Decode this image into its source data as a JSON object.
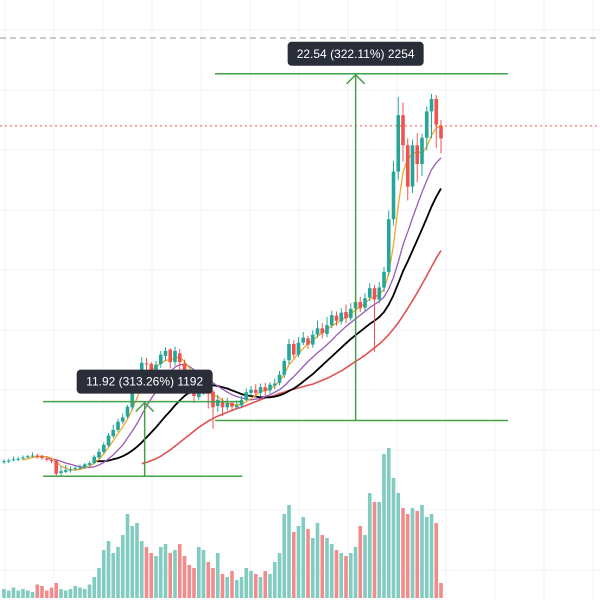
{
  "colors": {
    "up": "#26a69a",
    "down": "#ef5350",
    "vol_up": "#81cbc1",
    "vol_down": "#f28c8c",
    "measure": "#43a047",
    "ma_fast": "#f5a623",
    "ma_mid": "#9b59b6",
    "ma_black": "#000000",
    "ma_red": "#e05252",
    "tooltip_bg": "#2a2e39",
    "price_line": "#ef5350",
    "top_line": "#9598a1"
  },
  "chart_data": {
    "type": "candlestick",
    "grid": true,
    "candles": [
      [
        6,
        6,
        5.6,
        6.3
      ],
      [
        6.1,
        6.1,
        5.7,
        6.4
      ],
      [
        6.2,
        6.3,
        6.0,
        6.7
      ],
      [
        6.4,
        6.4,
        6.0,
        6.7
      ],
      [
        6.5,
        6.6,
        6.2,
        6.9
      ],
      [
        6.6,
        6.8,
        6.5,
        7.0
      ],
      [
        6.8,
        6.9,
        6.6,
        7.4
      ],
      [
        6.9,
        6.7,
        6.4,
        7.2
      ],
      [
        6.8,
        6.5,
        6.2,
        7.0
      ],
      [
        6.4,
        6.3,
        6.0,
        6.8
      ],
      [
        6.2,
        6.0,
        5.7,
        6.4
      ],
      [
        6.1,
        4.0,
        3.6,
        6.1
      ],
      [
        4.1,
        4.4,
        3.7,
        5.2
      ],
      [
        4.3,
        4.6,
        4.1,
        5.4
      ],
      [
        4.5,
        4.7,
        4.2,
        5.2
      ],
      [
        4.7,
        4.9,
        4.5,
        5.3
      ],
      [
        4.9,
        5.0,
        4.6,
        5.5
      ],
      [
        5.0,
        5.5,
        4.8,
        5.7
      ],
      [
        5.4,
        5.7,
        5.2,
        6.0
      ],
      [
        5.7,
        6.7,
        5.5,
        7.0
      ],
      [
        6.6,
        7.5,
        6.4,
        8.0
      ],
      [
        7.5,
        8.6,
        7.2,
        9.0
      ],
      [
        8.5,
        10.1,
        8.3,
        10.5
      ],
      [
        10.0,
        11.0,
        9.7,
        11.8
      ],
      [
        11.0,
        12.3,
        10.7,
        12.8
      ],
      [
        12.3,
        13.0,
        11.9,
        13.6
      ],
      [
        13.1,
        14.7,
        12.8,
        15.0
      ],
      [
        14.6,
        17.8,
        14.2,
        18.5
      ],
      [
        17.6,
        19.9,
        17.1,
        20.4
      ],
      [
        19.8,
        21.7,
        19.2,
        22.6
      ],
      [
        21.6,
        21.5,
        20.6,
        22.5
      ],
      [
        21.5,
        20.5,
        19.4,
        21.8
      ],
      [
        20.6,
        21.4,
        19.3,
        22.0
      ],
      [
        21.5,
        23.0,
        20.9,
        23.6
      ],
      [
        22.8,
        23.6,
        22.0,
        24.2
      ],
      [
        23.8,
        21.8,
        20.8,
        24.0
      ],
      [
        21.8,
        23.6,
        21.2,
        24.3
      ],
      [
        23.2,
        21.8,
        19.6,
        23.9
      ],
      [
        21.6,
        19.8,
        18.5,
        22.2
      ],
      [
        19.6,
        18.5,
        16.6,
        20.2
      ],
      [
        18.2,
        16.4,
        15.3,
        18.8
      ],
      [
        16.2,
        17.0,
        15.8,
        18.2
      ],
      [
        17.2,
        18.9,
        16.6,
        19.6
      ],
      [
        18.7,
        17.3,
        14.4,
        19.3
      ],
      [
        17.1,
        14.6,
        11.2,
        17.3
      ],
      [
        14.8,
        15.8,
        13.9,
        16.6
      ],
      [
        15.5,
        14.6,
        13.2,
        16.1
      ],
      [
        14.6,
        15.3,
        14.1,
        16.1
      ],
      [
        15.3,
        14.7,
        14.0,
        15.6
      ],
      [
        14.6,
        14.9,
        14.2,
        15.7
      ],
      [
        14.9,
        15.8,
        14.6,
        16.4
      ],
      [
        15.8,
        17.0,
        15.6,
        17.6
      ],
      [
        16.9,
        17.4,
        16.4,
        18.0
      ],
      [
        17.4,
        16.9,
        16.2,
        18.3
      ],
      [
        16.9,
        17.8,
        16.3,
        18.4
      ],
      [
        17.8,
        17.2,
        16.4,
        18.5
      ],
      [
        17.3,
        18.2,
        16.8,
        18.6
      ],
      [
        18.1,
        18.4,
        17.5,
        19.2
      ],
      [
        18.5,
        19.8,
        18.1,
        20.4
      ],
      [
        19.8,
        22.0,
        19.3,
        22.4
      ],
      [
        22.1,
        24.7,
        21.5,
        25.5
      ],
      [
        24.7,
        23.0,
        22.4,
        25.3
      ],
      [
        23.0,
        24.9,
        22.6,
        25.8
      ],
      [
        24.9,
        25.7,
        24.5,
        26.6
      ],
      [
        25.6,
        24.6,
        23.9,
        26.0
      ],
      [
        24.6,
        26.2,
        24.1,
        26.9
      ],
      [
        26.2,
        27.2,
        25.7,
        28.4
      ],
      [
        27.2,
        26.4,
        25.6,
        28.0
      ],
      [
        26.3,
        27.7,
        25.8,
        29.0
      ],
      [
        27.7,
        29.3,
        27.2,
        30.0
      ],
      [
        29.2,
        28.4,
        27.6,
        29.9
      ],
      [
        28.3,
        29.7,
        27.8,
        30.4
      ],
      [
        29.8,
        28.8,
        28.0,
        31.0
      ],
      [
        28.8,
        30.3,
        28.4,
        31.2
      ],
      [
        30.4,
        31.4,
        29.9,
        32.0
      ],
      [
        31.4,
        30.4,
        29.8,
        32.2
      ],
      [
        30.5,
        32.0,
        29.9,
        32.8
      ],
      [
        32.1,
        33.6,
        31.5,
        34.4
      ],
      [
        33.6,
        31.8,
        23.5,
        34.1
      ],
      [
        31.8,
        33.7,
        31.2,
        34.6
      ],
      [
        33.7,
        36.2,
        33.0,
        37.0
      ],
      [
        36.2,
        44.6,
        35.6,
        46.0
      ],
      [
        44.6,
        52.2,
        43.6,
        53.9
      ],
      [
        52.2,
        61.2,
        50.9,
        64.1
      ],
      [
        61.2,
        56.4,
        53.8,
        63.2
      ],
      [
        56.4,
        49.8,
        47.6,
        57.5
      ],
      [
        49.8,
        56.4,
        48.8,
        57.3
      ],
      [
        56.4,
        53.4,
        50.5,
        58.3
      ],
      [
        53.4,
        57.6,
        51.5,
        58.2
      ],
      [
        57.6,
        61.8,
        55.6,
        62.6
      ],
      [
        61.8,
        63.8,
        57.5,
        64.6
      ],
      [
        63.8,
        59.7,
        56.0,
        64.4
      ],
      [
        59.5,
        57.5,
        55.1,
        60.4
      ]
    ],
    "volumes": [
      0.06,
      0.05,
      0.07,
      0.05,
      0.06,
      0.05,
      0.04,
      0.09,
      0.08,
      0.05,
      0.07,
      0.1,
      0.06,
      0.05,
      0.06,
      0.08,
      0.07,
      0.06,
      0.09,
      0.14,
      0.2,
      0.32,
      0.38,
      0.3,
      0.34,
      0.42,
      0.56,
      0.48,
      0.5,
      0.38,
      0.34,
      0.3,
      0.28,
      0.34,
      0.36,
      0.3,
      0.32,
      0.36,
      0.28,
      0.22,
      0.2,
      0.34,
      0.32,
      0.24,
      0.2,
      0.3,
      0.16,
      0.14,
      0.18,
      0.12,
      0.14,
      0.2,
      0.18,
      0.16,
      0.14,
      0.18,
      0.16,
      0.24,
      0.3,
      0.56,
      0.62,
      0.44,
      0.48,
      0.54,
      0.46,
      0.4,
      0.5,
      0.42,
      0.4,
      0.36,
      0.32,
      0.3,
      0.28,
      0.3,
      0.34,
      0.48,
      0.42,
      0.7,
      0.64,
      0.64,
      0.96,
      1.0,
      0.8,
      0.7,
      0.6,
      0.56,
      0.6,
      0.58,
      0.62,
      0.54,
      0.56,
      0.5,
      0.1
    ],
    "ma_fast": [
      null,
      null,
      null,
      null,
      6.2,
      6.4,
      6.6,
      6.7,
      6.8,
      6.7,
      6.5,
      5.9,
      5.2,
      4.9,
      4.6,
      4.6,
      4.7,
      4.9,
      5.2,
      5.7,
      6.3,
      7.2,
      8.2,
      9.3,
      10.4,
      11.5,
      12.7,
      14.2,
      16.1,
      18.0,
      19.6,
      20.5,
      21.1,
      21.6,
      22.1,
      22.2,
      22.5,
      22.6,
      21.9,
      20.9,
      19.5,
      18.3,
      17.6,
      17.0,
      16.5,
      16.3,
      15.7,
      15.3,
      15.0,
      15.0,
      15.1,
      15.5,
      16.0,
      16.5,
      17.1,
      17.3,
      17.6,
      18.0,
      18.8,
      19.9,
      21.4,
      22.3,
      23.2,
      24.0,
      24.8,
      25.3,
      25.9,
      26.5,
      27.0,
      27.6,
      28.0,
      28.5,
      29.0,
      29.5,
      30.1,
      30.6,
      31.2,
      31.9,
      32.2,
      32.6,
      33.4,
      36.0,
      40.5,
      46.8,
      52.1,
      54.2,
      55.0,
      55.4,
      55.1,
      56.2,
      58.0,
      59.1,
      59.6
    ],
    "ma_mid": [
      null,
      null,
      null,
      null,
      null,
      null,
      null,
      null,
      null,
      6.4,
      6.4,
      6.2,
      6.0,
      5.7,
      5.5,
      5.3,
      5.1,
      5.0,
      5.0,
      5.1,
      5.4,
      5.8,
      6.4,
      7.0,
      7.8,
      8.6,
      9.7,
      10.8,
      12.0,
      13.4,
      14.8,
      16.0,
      17.1,
      18.3,
      19.4,
      20.3,
      21.0,
      21.4,
      21.4,
      21.1,
      20.6,
      20.1,
      19.6,
      19.1,
      18.5,
      18.0,
      17.5,
      17.0,
      16.6,
      16.3,
      16.1,
      15.9,
      15.8,
      15.9,
      16.0,
      16.3,
      16.6,
      17.0,
      17.4,
      18.0,
      18.8,
      19.5,
      20.3,
      21.1,
      21.9,
      22.6,
      23.3,
      23.9,
      24.6,
      25.3,
      26.1,
      26.8,
      27.5,
      28.1,
      28.7,
      29.3,
      29.9,
      30.5,
      31.0,
      31.5,
      32.2,
      33.5,
      35.3,
      37.8,
      40.5,
      42.6,
      44.8,
      46.9,
      48.9,
      50.8,
      52.5,
      53.6,
      54.4
    ],
    "ma_black": [
      null,
      null,
      null,
      null,
      null,
      null,
      null,
      null,
      null,
      null,
      null,
      null,
      null,
      null,
      null,
      null,
      null,
      null,
      null,
      6.0,
      6.0,
      6.0,
      6.1,
      6.3,
      6.5,
      6.8,
      7.2,
      7.7,
      8.3,
      9.0,
      9.8,
      10.6,
      11.4,
      12.3,
      13.2,
      14.0,
      14.9,
      15.7,
      16.4,
      17.0,
      17.4,
      17.8,
      18.0,
      18.2,
      18.1,
      18.0,
      17.8,
      17.6,
      17.3,
      17.0,
      16.7,
      16.5,
      16.4,
      16.3,
      16.2,
      16.2,
      16.2,
      16.3,
      16.5,
      16.8,
      17.2,
      17.6,
      18.1,
      18.7,
      19.3,
      19.9,
      20.6,
      21.3,
      22.0,
      22.7,
      23.4,
      24.1,
      24.8,
      25.5,
      26.1,
      26.7,
      27.3,
      27.9,
      28.4,
      29.0,
      29.8,
      31.0,
      32.5,
      34.4,
      36.3,
      37.9,
      39.6,
      41.3,
      43.0,
      44.8,
      46.6,
      48.2,
      49.5
    ],
    "ma_red": [
      null,
      null,
      null,
      null,
      null,
      null,
      null,
      null,
      null,
      null,
      null,
      null,
      null,
      null,
      null,
      null,
      null,
      null,
      null,
      null,
      null,
      null,
      null,
      null,
      null,
      null,
      null,
      null,
      null,
      5.6,
      5.8,
      6.1,
      6.4,
      6.8,
      7.3,
      7.8,
      8.4,
      9.0,
      9.6,
      10.2,
      10.8,
      11.4,
      11.9,
      12.4,
      12.8,
      13.2,
      13.5,
      13.8,
      14.1,
      14.4,
      14.6,
      14.9,
      15.2,
      15.5,
      15.8,
      16.1,
      16.3,
      16.5,
      16.8,
      17.0,
      17.3,
      17.5,
      17.7,
      17.9,
      18.1,
      18.3,
      18.6,
      18.9,
      19.2,
      19.6,
      20.0,
      20.4,
      20.9,
      21.4,
      21.9,
      22.4,
      22.9,
      23.5,
      24.1,
      24.7,
      25.4,
      26.2,
      27.1,
      28.1,
      29.2,
      30.4,
      31.6,
      32.9,
      34.2,
      35.6,
      37.0,
      38.4,
      39.6
    ],
    "current_price": 59.5,
    "measurements": [
      {
        "label": "11.92 (313.26%) 1192",
        "from": 3.6,
        "to": 15.5,
        "start": 10,
        "end": 61,
        "arrow_at": 36
      },
      {
        "label": "22.54 (322.11%) 2254",
        "from": 12.5,
        "to": 67.8,
        "start": 54,
        "end": 129,
        "arrow_at": 90
      }
    ]
  }
}
